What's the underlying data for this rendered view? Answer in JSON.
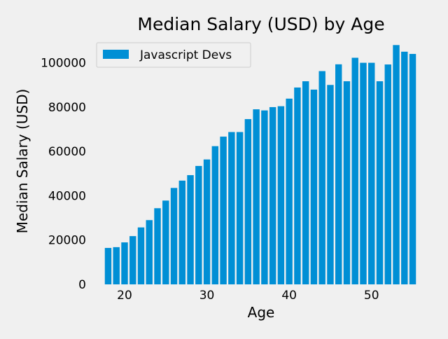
{
  "chart_data": {
    "type": "bar",
    "title": "Median Salary (USD) by Age",
    "xlabel": "Age",
    "ylabel": "Median Salary (USD)",
    "x": [
      18,
      19,
      20,
      21,
      22,
      23,
      24,
      25,
      26,
      27,
      28,
      29,
      30,
      31,
      32,
      33,
      34,
      35,
      36,
      37,
      38,
      39,
      40,
      41,
      42,
      43,
      44,
      45,
      46,
      47,
      48,
      49,
      50,
      51,
      52,
      53,
      54,
      55
    ],
    "series": [
      {
        "name": "Javascript Devs",
        "color": "#008fd5",
        "values": [
          16446,
          16791,
          18942,
          21780,
          25704,
          29000,
          34372,
          37810,
          43515,
          46823,
          49293,
          53437,
          56373,
          62375,
          66674,
          68745,
          68746,
          74583,
          79000,
          78508,
          79996,
          80403,
          83820,
          88833,
          91660,
          87892,
          96243,
          90000,
          99313,
          91660,
          102264,
          100000,
          100000,
          91660,
          99240,
          108000,
          105000,
          104000
        ]
      }
    ],
    "xlim": [
      16.6,
      56.4
    ],
    "ylim": [
      0,
      110000
    ],
    "xticks": [
      20,
      30,
      40,
      50
    ],
    "yticks": [
      0,
      20000,
      40000,
      60000,
      80000,
      100000
    ],
    "legend": "top-left",
    "grid": false
  }
}
